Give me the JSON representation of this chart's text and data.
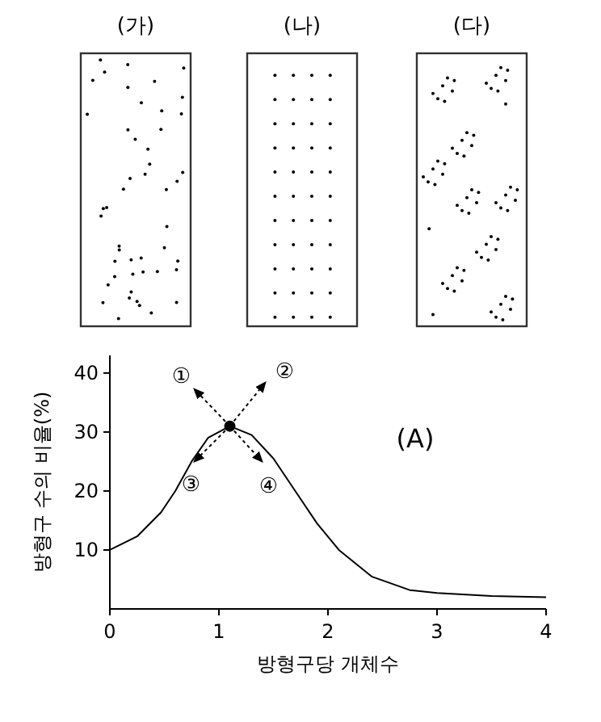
{
  "chart_data": {
    "type": "line",
    "xlabel": "방형구당 개체수",
    "ylabel": "방형구 수의 비율(%)",
    "xlim": [
      0,
      4
    ],
    "ylim": [
      0,
      43
    ],
    "xticks": [
      0,
      1,
      2,
      3,
      4
    ],
    "yticks": [
      10,
      20,
      30,
      40
    ],
    "series": [
      {
        "color": "#000000",
        "x": [
          0,
          0.25,
          0.47,
          0.6,
          0.75,
          0.9,
          1.1,
          1.3,
          1.5,
          1.7,
          1.9,
          2.1,
          2.4,
          2.75,
          3,
          3.5,
          4
        ],
        "values": [
          10,
          12.3,
          16.4,
          20,
          25,
          29,
          31,
          29.5,
          25.5,
          20,
          14.5,
          10,
          5.5,
          3.2,
          2.7,
          2.2,
          2
        ]
      },
      {
        "type": "scatter",
        "color": "#000000",
        "x": [
          1.1
        ],
        "values": [
          31
        ]
      }
    ],
    "annotations": [
      "(가)",
      "(나)",
      "(다)",
      "①",
      "②",
      "③",
      "④",
      "(A)"
    ]
  }
}
